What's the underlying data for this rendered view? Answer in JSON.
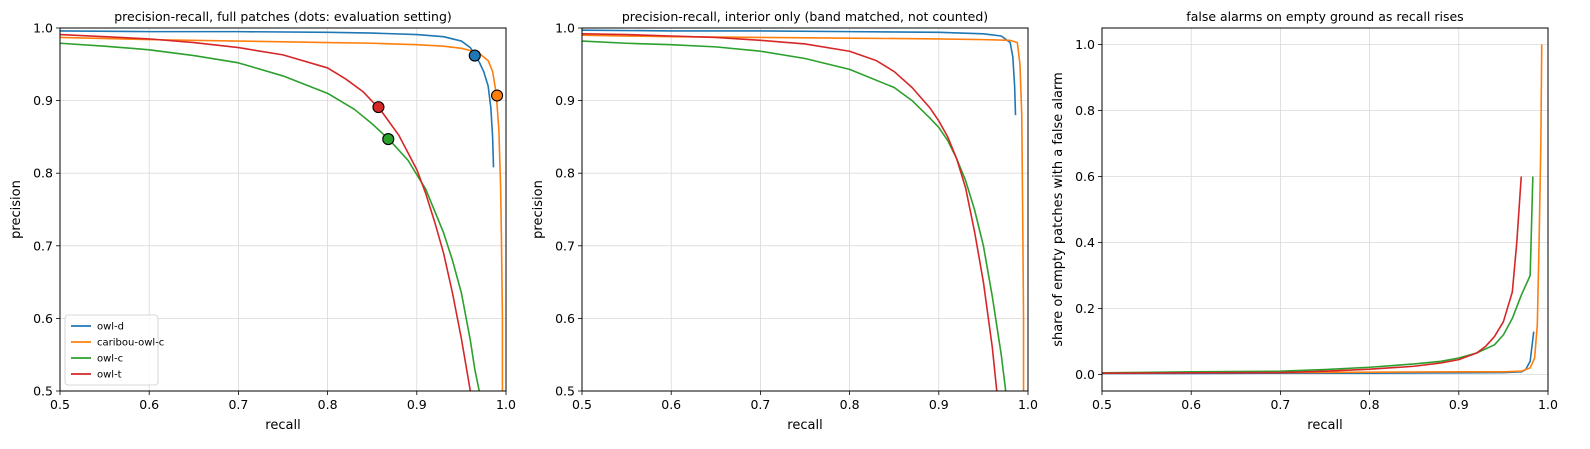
{
  "colors": {
    "owl-d": "#1f77b4",
    "caribou-owl-c": "#ff7f0e",
    "owl-c": "#2ca02c",
    "owl-t": "#d62728"
  },
  "legend": {
    "placement": "lower-left",
    "panel": 0,
    "entries": [
      "owl-d",
      "caribou-owl-c",
      "owl-c",
      "owl-t"
    ]
  },
  "chart_data": [
    {
      "type": "line",
      "title": "precision-recall, full patches (dots: evaluation setting)",
      "xlabel": "recall",
      "ylabel": "precision",
      "xlim": [
        0.5,
        1.0
      ],
      "ylim": [
        0.5,
        1.0
      ],
      "xticks": [
        "0.5",
        "0.6",
        "0.7",
        "0.8",
        "0.9",
        "1.0"
      ],
      "yticks": [
        "0.5",
        "0.6",
        "0.7",
        "0.8",
        "0.9",
        "1.0"
      ],
      "grid": true,
      "series": [
        {
          "name": "owl-d",
          "x": [
            0.5,
            0.6,
            0.7,
            0.8,
            0.85,
            0.9,
            0.93,
            0.95,
            0.96,
            0.965,
            0.97,
            0.975,
            0.98,
            0.983,
            0.985,
            0.986
          ],
          "y": [
            0.996,
            0.995,
            0.995,
            0.994,
            0.993,
            0.991,
            0.988,
            0.982,
            0.973,
            0.963,
            0.953,
            0.94,
            0.92,
            0.89,
            0.85,
            0.808
          ]
        },
        {
          "name": "caribou-owl-c",
          "x": [
            0.5,
            0.6,
            0.7,
            0.8,
            0.85,
            0.9,
            0.93,
            0.95,
            0.96,
            0.97,
            0.98,
            0.985,
            0.989,
            0.992,
            0.994,
            0.995,
            0.996,
            0.996
          ],
          "y": [
            0.987,
            0.984,
            0.982,
            0.98,
            0.979,
            0.977,
            0.975,
            0.972,
            0.969,
            0.965,
            0.955,
            0.94,
            0.91,
            0.86,
            0.78,
            0.7,
            0.6,
            0.5
          ]
        },
        {
          "name": "owl-c",
          "x": [
            0.5,
            0.55,
            0.6,
            0.65,
            0.7,
            0.75,
            0.8,
            0.83,
            0.85,
            0.87,
            0.89,
            0.91,
            0.92,
            0.93,
            0.94,
            0.95,
            0.96,
            0.965,
            0.97
          ],
          "y": [
            0.979,
            0.975,
            0.97,
            0.962,
            0.952,
            0.934,
            0.91,
            0.888,
            0.868,
            0.845,
            0.818,
            0.778,
            0.748,
            0.718,
            0.68,
            0.635,
            0.57,
            0.53,
            0.5
          ]
        },
        {
          "name": "owl-t",
          "x": [
            0.5,
            0.55,
            0.6,
            0.65,
            0.7,
            0.75,
            0.8,
            0.82,
            0.84,
            0.86,
            0.88,
            0.9,
            0.91,
            0.92,
            0.93,
            0.94,
            0.95,
            0.96
          ],
          "y": [
            0.991,
            0.988,
            0.985,
            0.98,
            0.973,
            0.963,
            0.945,
            0.93,
            0.912,
            0.886,
            0.852,
            0.805,
            0.772,
            0.733,
            0.69,
            0.635,
            0.572,
            0.5
          ]
        }
      ],
      "markers": [
        {
          "series": "owl-d",
          "x": 0.965,
          "y": 0.962
        },
        {
          "series": "caribou-owl-c",
          "x": 0.99,
          "y": 0.907
        },
        {
          "series": "owl-c",
          "x": 0.868,
          "y": 0.847
        },
        {
          "series": "owl-t",
          "x": 0.857,
          "y": 0.891
        }
      ]
    },
    {
      "type": "line",
      "title": "precision-recall, interior only (band matched, not counted)",
      "xlabel": "recall",
      "ylabel": "precision",
      "xlim": [
        0.5,
        1.0
      ],
      "ylim": [
        0.5,
        1.0
      ],
      "xticks": [
        "0.5",
        "0.6",
        "0.7",
        "0.8",
        "0.9",
        "1.0"
      ],
      "yticks": [
        "0.5",
        "0.6",
        "0.7",
        "0.8",
        "0.9",
        "1.0"
      ],
      "grid": true,
      "series": [
        {
          "name": "owl-d",
          "x": [
            0.5,
            0.6,
            0.7,
            0.8,
            0.9,
            0.95,
            0.97,
            0.98,
            0.983,
            0.985,
            0.986
          ],
          "y": [
            0.997,
            0.996,
            0.996,
            0.995,
            0.994,
            0.992,
            0.989,
            0.98,
            0.96,
            0.92,
            0.88
          ]
        },
        {
          "name": "caribou-owl-c",
          "x": [
            0.5,
            0.6,
            0.7,
            0.8,
            0.9,
            0.95,
            0.98,
            0.988,
            0.991,
            0.993,
            0.994,
            0.995,
            0.995
          ],
          "y": [
            0.99,
            0.988,
            0.987,
            0.986,
            0.985,
            0.984,
            0.983,
            0.98,
            0.95,
            0.88,
            0.75,
            0.6,
            0.5
          ]
        },
        {
          "name": "owl-c",
          "x": [
            0.5,
            0.55,
            0.6,
            0.65,
            0.7,
            0.75,
            0.8,
            0.85,
            0.87,
            0.89,
            0.9,
            0.91,
            0.92,
            0.93,
            0.94,
            0.95,
            0.96,
            0.97,
            0.975
          ],
          "y": [
            0.982,
            0.979,
            0.977,
            0.974,
            0.968,
            0.958,
            0.943,
            0.918,
            0.9,
            0.876,
            0.863,
            0.845,
            0.82,
            0.79,
            0.75,
            0.7,
            0.63,
            0.55,
            0.5
          ]
        },
        {
          "name": "owl-t",
          "x": [
            0.5,
            0.55,
            0.6,
            0.65,
            0.7,
            0.75,
            0.8,
            0.83,
            0.85,
            0.87,
            0.89,
            0.9,
            0.91,
            0.92,
            0.93,
            0.94,
            0.95,
            0.96,
            0.965
          ],
          "y": [
            0.992,
            0.991,
            0.989,
            0.987,
            0.983,
            0.978,
            0.968,
            0.955,
            0.94,
            0.918,
            0.89,
            0.872,
            0.85,
            0.82,
            0.78,
            0.72,
            0.65,
            0.56,
            0.5
          ]
        }
      ]
    },
    {
      "type": "line",
      "title": "false alarms on empty ground as recall rises",
      "xlabel": "recall",
      "ylabel": "share of empty patches with a false alarm",
      "xlim": [
        0.5,
        1.0
      ],
      "ylim": [
        -0.05,
        1.05
      ],
      "xticks": [
        "0.5",
        "0.6",
        "0.7",
        "0.8",
        "0.9",
        "1.0"
      ],
      "yticks": [
        "0.0",
        "0.2",
        "0.4",
        "0.6",
        "0.8",
        "1.0"
      ],
      "grid": true,
      "series": [
        {
          "name": "owl-d",
          "x": [
            0.5,
            0.6,
            0.7,
            0.8,
            0.9,
            0.95,
            0.97,
            0.975,
            0.98,
            0.984
          ],
          "y": [
            0.003,
            0.003,
            0.004,
            0.004,
            0.005,
            0.006,
            0.008,
            0.015,
            0.04,
            0.13
          ]
        },
        {
          "name": "caribou-owl-c",
          "x": [
            0.5,
            0.6,
            0.7,
            0.8,
            0.9,
            0.95,
            0.97,
            0.98,
            0.985,
            0.988,
            0.99,
            0.992,
            0.993
          ],
          "y": [
            0.005,
            0.006,
            0.006,
            0.007,
            0.008,
            0.008,
            0.01,
            0.02,
            0.05,
            0.15,
            0.4,
            0.7,
            1.0
          ]
        },
        {
          "name": "owl-c",
          "x": [
            0.5,
            0.6,
            0.7,
            0.75,
            0.8,
            0.85,
            0.88,
            0.9,
            0.92,
            0.94,
            0.95,
            0.96,
            0.97,
            0.98,
            0.983
          ],
          "y": [
            0.005,
            0.008,
            0.01,
            0.015,
            0.022,
            0.032,
            0.04,
            0.05,
            0.065,
            0.09,
            0.12,
            0.17,
            0.24,
            0.3,
            0.6
          ]
        },
        {
          "name": "owl-t",
          "x": [
            0.5,
            0.6,
            0.7,
            0.75,
            0.8,
            0.85,
            0.88,
            0.9,
            0.92,
            0.93,
            0.94,
            0.95,
            0.96,
            0.965,
            0.97
          ],
          "y": [
            0.004,
            0.005,
            0.006,
            0.01,
            0.016,
            0.025,
            0.035,
            0.045,
            0.065,
            0.085,
            0.115,
            0.16,
            0.25,
            0.4,
            0.6
          ]
        }
      ]
    }
  ]
}
